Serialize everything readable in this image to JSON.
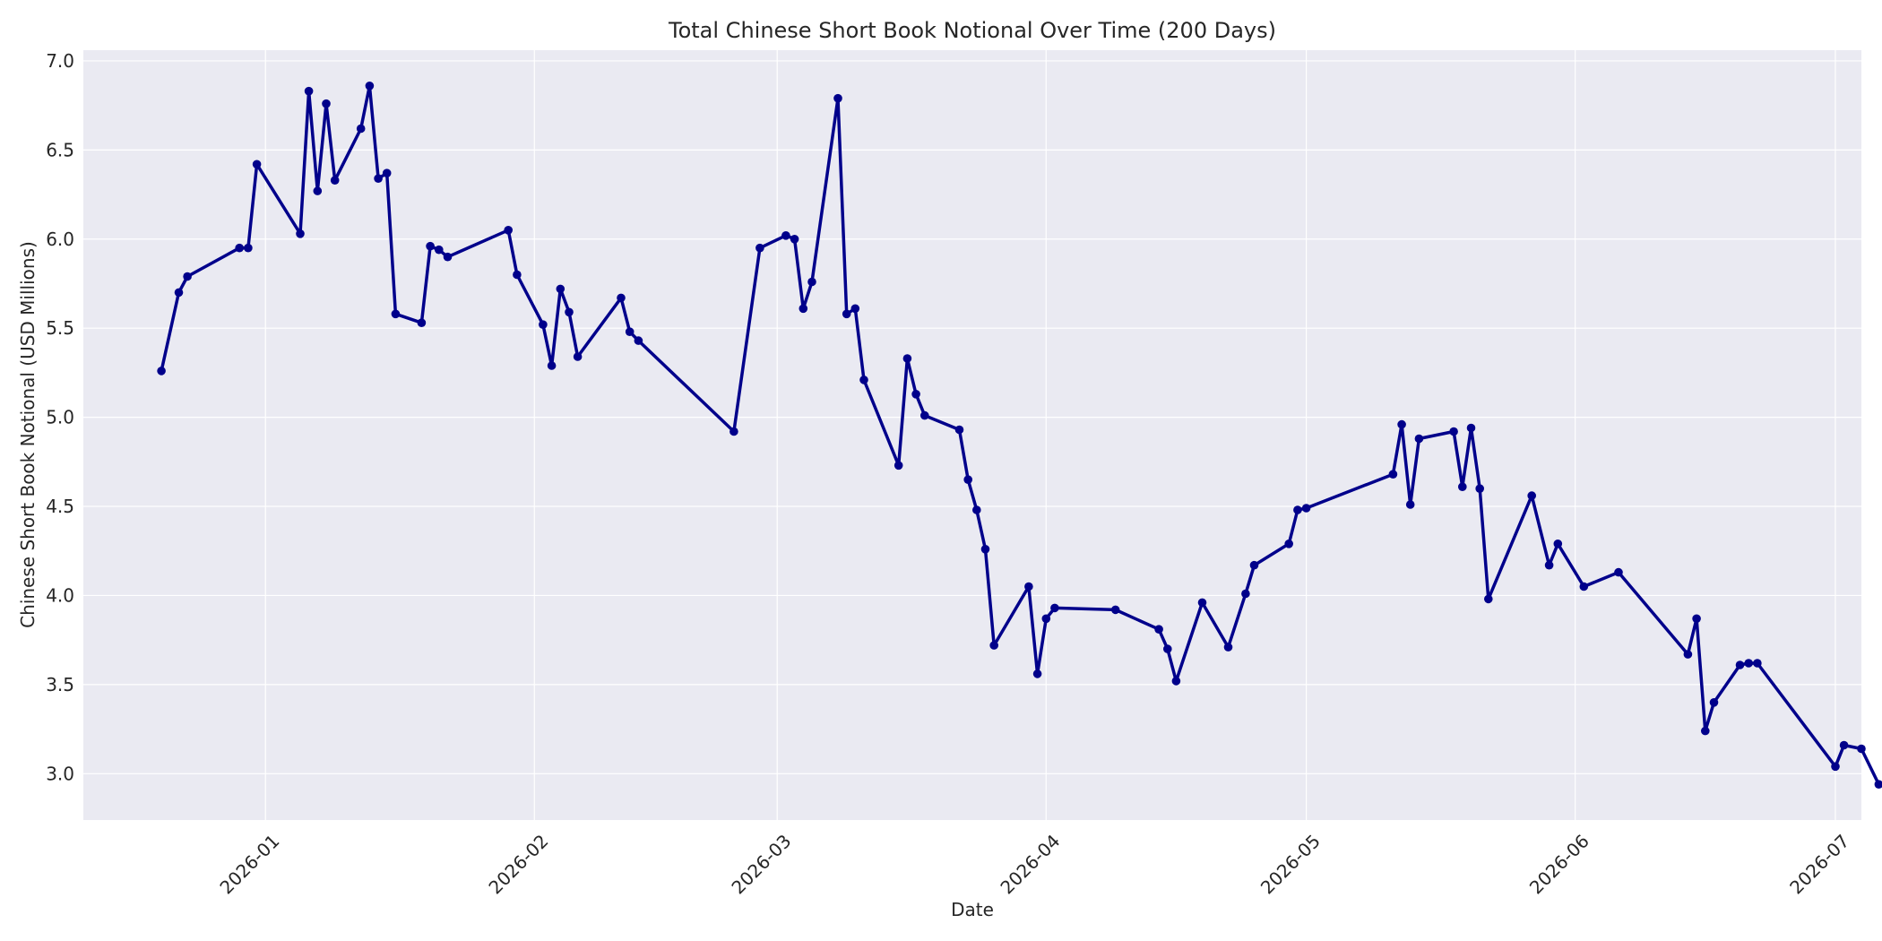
{
  "chart_data": {
    "type": "line",
    "title": "Total Chinese Short Book Notional Over Time (200 Days)",
    "xlabel": "Date",
    "ylabel": "Chinese Short Book Notional (USD Millions)",
    "xlim": [
      "2025-12-11",
      "2026-07-04"
    ],
    "ylim": [
      2.74,
      7.06
    ],
    "x_ticks": [
      "2026-01-01",
      "2026-02-01",
      "2026-03-01",
      "2026-04-01",
      "2026-05-01",
      "2026-06-01",
      "2026-07-01"
    ],
    "x_tick_labels": [
      "2026-01",
      "2026-02",
      "2026-03",
      "2026-04",
      "2026-05",
      "2026-06",
      "2026-07"
    ],
    "y_ticks": [
      3.0,
      3.5,
      4.0,
      4.5,
      5.0,
      5.5,
      6.0,
      6.5,
      7.0
    ],
    "y_tick_labels": [
      "3.0",
      "3.5",
      "4.0",
      "4.5",
      "5.0",
      "5.5",
      "6.0",
      "6.5",
      "7.0"
    ],
    "grid": true,
    "colors": {
      "plot_background": "#eaeaf2",
      "grid": "#ffffff",
      "line": "#00008b"
    },
    "series": [
      {
        "x": [
          "2025-12-20",
          "2025-12-22",
          "2025-12-23",
          "2025-12-29",
          "2025-12-30",
          "2025-12-31",
          "2026-01-05",
          "2026-01-06",
          "2026-01-07",
          "2026-01-08",
          "2026-01-09",
          "2026-01-12",
          "2026-01-13",
          "2026-01-14",
          "2026-01-15",
          "2026-01-16",
          "2026-01-19",
          "2026-01-20",
          "2026-01-21",
          "2026-01-22",
          "2026-01-29",
          "2026-01-30",
          "2026-02-02",
          "2026-02-03",
          "2026-02-04",
          "2026-02-05",
          "2026-02-06",
          "2026-02-11",
          "2026-02-12",
          "2026-02-13",
          "2026-02-24",
          "2026-02-27",
          "2026-03-02",
          "2026-03-03",
          "2026-03-04",
          "2026-03-05",
          "2026-03-08",
          "2026-03-09",
          "2026-03-10",
          "2026-03-11",
          "2026-03-15",
          "2026-03-16",
          "2026-03-17",
          "2026-03-18",
          "2026-03-22",
          "2026-03-23",
          "2026-03-24",
          "2026-03-25",
          "2026-03-26",
          "2026-03-30",
          "2026-03-31",
          "2026-04-01",
          "2026-04-02",
          "2026-04-09",
          "2026-04-14",
          "2026-04-15",
          "2026-04-16",
          "2026-04-19",
          "2026-04-22",
          "2026-04-24",
          "2026-04-25",
          "2026-04-29",
          "2026-04-30",
          "2026-05-01",
          "2026-05-11",
          "2026-05-12",
          "2026-05-13",
          "2026-05-14",
          "2026-05-18",
          "2026-05-19",
          "2026-05-20",
          "2026-05-21",
          "2026-05-22",
          "2026-05-27",
          "2026-05-29",
          "2026-05-30",
          "2026-06-02",
          "2026-06-06",
          "2026-06-14",
          "2026-06-15",
          "2026-06-16",
          "2026-06-17",
          "2026-06-20",
          "2026-06-21",
          "2026-06-22",
          "2026-07-01",
          "2026-07-02",
          "2026-07-04",
          "2026-07-06"
        ],
        "values": [
          5.26,
          5.7,
          5.79,
          5.95,
          5.95,
          6.42,
          6.03,
          6.83,
          6.27,
          6.76,
          6.33,
          6.62,
          6.86,
          6.34,
          6.37,
          5.58,
          5.53,
          5.96,
          5.94,
          5.9,
          6.05,
          5.8,
          5.52,
          5.29,
          5.72,
          5.59,
          5.34,
          5.67,
          5.48,
          5.43,
          4.92,
          5.95,
          6.02,
          6.0,
          5.61,
          5.76,
          6.79,
          5.58,
          5.61,
          5.21,
          4.73,
          5.33,
          5.13,
          5.01,
          4.93,
          4.65,
          4.48,
          4.26,
          3.72,
          4.05,
          3.56,
          3.87,
          3.93,
          3.92,
          3.81,
          3.7,
          3.52,
          3.96,
          3.71,
          4.01,
          4.17,
          4.29,
          4.48,
          4.49,
          4.68,
          4.96,
          4.51,
          4.88,
          4.92,
          4.61,
          4.94,
          4.6,
          3.98,
          4.56,
          4.17,
          4.29,
          4.05,
          4.13,
          3.67,
          3.87,
          3.24,
          3.4,
          3.61,
          3.62,
          3.62,
          3.04,
          3.16,
          3.14,
          2.94
        ]
      }
    ]
  }
}
